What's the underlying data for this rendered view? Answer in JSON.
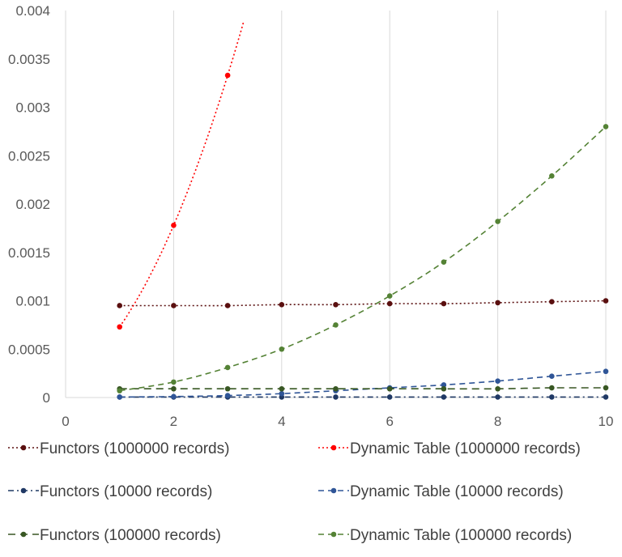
{
  "chart_data": {
    "type": "line",
    "title": "",
    "xlabel": "",
    "ylabel": "",
    "xlim": [
      0,
      10
    ],
    "ylim": [
      0,
      0.004
    ],
    "x_ticks": [
      "0",
      "2",
      "4",
      "6",
      "8",
      "10"
    ],
    "y_ticks": [
      "0",
      "0.0005",
      "0.001",
      "0.0015",
      "0.002",
      "0.0025",
      "0.003",
      "0.0035",
      "0.004"
    ],
    "grid": "vertical",
    "legend_position": "bottom",
    "series": [
      {
        "name": "Functors (1000000 records)",
        "color": "#5a0f0f",
        "dash": "dotted",
        "x": [
          1,
          2,
          3,
          4,
          5,
          6,
          7,
          8,
          9,
          10
        ],
        "y": [
          0.00095,
          0.00095,
          0.00095,
          0.00096,
          0.00096,
          0.00097,
          0.00097,
          0.00098,
          0.00099,
          0.001
        ]
      },
      {
        "name": "Dynamic Table (1000000 records)",
        "color": "#ff0000",
        "dash": "dotted",
        "x": [
          1,
          2,
          3
        ],
        "y": [
          0.00073,
          0.00178,
          0.00333
        ],
        "curve_extends_to": 3.3
      },
      {
        "name": "Functors (10000 records)",
        "color": "#1f3864",
        "dash": "dashdot",
        "x": [
          1,
          2,
          3,
          4,
          5,
          6,
          7,
          8,
          9,
          10
        ],
        "y": [
          5e-06,
          5e-06,
          5e-06,
          5e-06,
          5e-06,
          5e-06,
          5e-06,
          5e-06,
          5e-06,
          5e-06
        ]
      },
      {
        "name": "Dynamic Table (10000 records)",
        "color": "#2f5597",
        "dash": "dashed",
        "x": [
          1,
          2,
          3,
          4,
          5,
          6,
          7,
          8,
          9,
          10
        ],
        "y": [
          5e-06,
          1e-05,
          2e-05,
          4e-05,
          7e-05,
          0.0001,
          0.00013,
          0.00017,
          0.00022,
          0.00027
        ]
      },
      {
        "name": "Functors (100000 records)",
        "color": "#385723",
        "dash": "longdash",
        "x": [
          1,
          2,
          3,
          4,
          5,
          6,
          7,
          8,
          9,
          10
        ],
        "y": [
          9e-05,
          9e-05,
          9e-05,
          9e-05,
          9e-05,
          9e-05,
          9e-05,
          9e-05,
          0.0001,
          0.0001
        ]
      },
      {
        "name": "Dynamic Table (100000 records)",
        "color": "#548235",
        "dash": "dashed",
        "x": [
          1,
          2,
          3,
          4,
          5,
          6,
          7,
          8,
          9,
          10
        ],
        "y": [
          7e-05,
          0.00016,
          0.00031,
          0.0005,
          0.00075,
          0.00105,
          0.0014,
          0.00182,
          0.00229,
          0.0028
        ]
      }
    ]
  }
}
